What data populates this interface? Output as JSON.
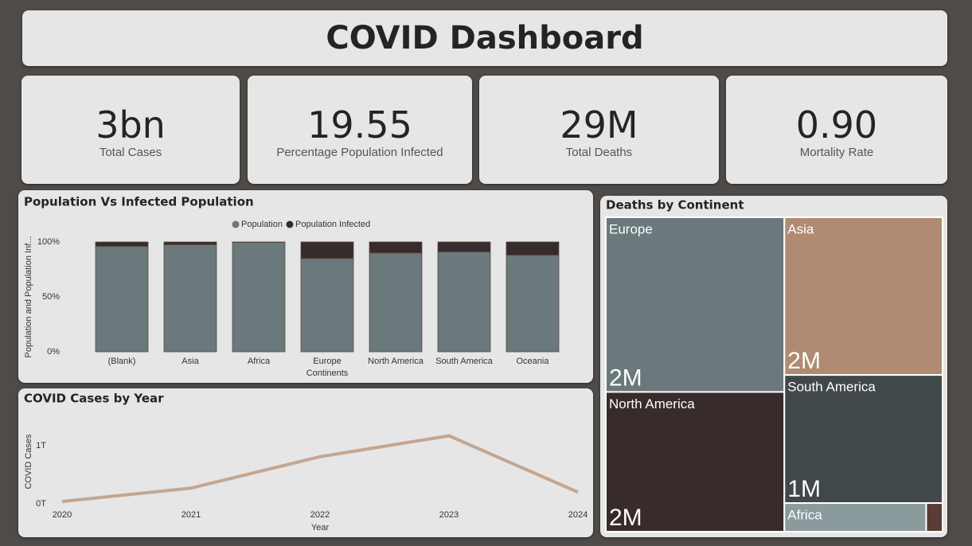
{
  "header": {
    "title": "COVID Dashboard"
  },
  "cards": [
    {
      "value": "3bn",
      "label": "Total Cases"
    },
    {
      "value": "19.55",
      "label": "Percentage Population Infected"
    },
    {
      "value": "29M",
      "label": "Total Deaths"
    },
    {
      "value": "0.90",
      "label": "Mortality Rate"
    }
  ],
  "chart_data": [
    {
      "type": "stacked_bar",
      "title": "Population Vs Infected Population",
      "y_label": "Population and Population Inf...",
      "x_label": "Continents",
      "categories": [
        "(Blank)",
        "Asia",
        "Africa",
        "Europe",
        "North America",
        "South America",
        "Oceania"
      ],
      "series": [
        {
          "name": "Population",
          "color": "#6b787c",
          "values": [
            96,
            97.5,
            99.5,
            85,
            90,
            91,
            88
          ]
        },
        {
          "name": "Population Infected",
          "color": "#372b2b",
          "values": [
            4,
            2.5,
            0.5,
            15,
            10,
            9,
            12
          ]
        }
      ],
      "ylim": [
        0,
        100
      ],
      "yticks": [
        {
          "value": 0,
          "label": "0%"
        },
        {
          "value": 50,
          "label": "50%"
        },
        {
          "value": 100,
          "label": "100%"
        }
      ]
    },
    {
      "type": "line",
      "title": "COVID Cases by Year",
      "y_label": "COVID Cases",
      "x_label": "Year",
      "x": [
        2020,
        2021,
        2022,
        2023,
        2024
      ],
      "color": "#c4a690",
      "values": [
        40000000000,
        270000000000,
        810000000000,
        1170000000000,
        200000000000
      ],
      "xlim": [
        2020,
        2024
      ],
      "xticks": [
        2020,
        2021,
        2022,
        2023,
        2024
      ],
      "ylim": [
        0,
        1300000000000
      ],
      "yticks": [
        {
          "value": 0,
          "label": "0T"
        },
        {
          "value": 1000000000000,
          "label": "1T"
        }
      ]
    },
    {
      "type": "treemap",
      "title": "Deaths by Continent",
      "categories": [
        "Europe",
        "Asia",
        "North America",
        "South America",
        "Africa",
        null
      ],
      "values": [
        2000000,
        1600000,
        1600000,
        1300000,
        260000,
        30000
      ],
      "value_labels": [
        "2M",
        "2M",
        "2M",
        "1M",
        null,
        null
      ],
      "colors": [
        "#6b787c",
        "#b08b72",
        "#372b2b",
        "#414849",
        "#8a9a9d",
        "#5b3b35"
      ]
    }
  ]
}
